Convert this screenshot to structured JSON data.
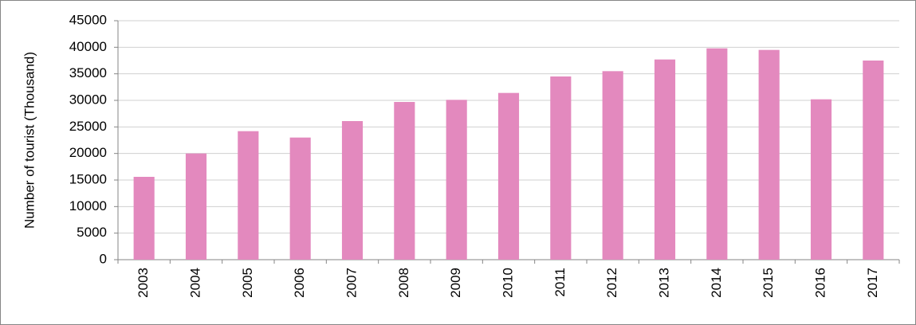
{
  "chart_data": {
    "type": "bar",
    "y_label": "Number of tourist (Thousand)",
    "categories": [
      "2003",
      "2004",
      "2005",
      "2006",
      "2007",
      "2008",
      "2009",
      "2010",
      "2011",
      "2012",
      "2013",
      "2014",
      "2015",
      "2016",
      "2017"
    ],
    "values": [
      15600,
      20000,
      24200,
      23000,
      26100,
      29700,
      30100,
      31400,
      34500,
      35500,
      37700,
      39800,
      39500,
      30200,
      37500
    ],
    "color": "#e389be",
    "ylim": [
      0,
      45000
    ],
    "yticks": [
      0,
      5000,
      10000,
      15000,
      20000,
      25000,
      30000,
      35000,
      40000,
      45000
    ],
    "grid": true
  }
}
